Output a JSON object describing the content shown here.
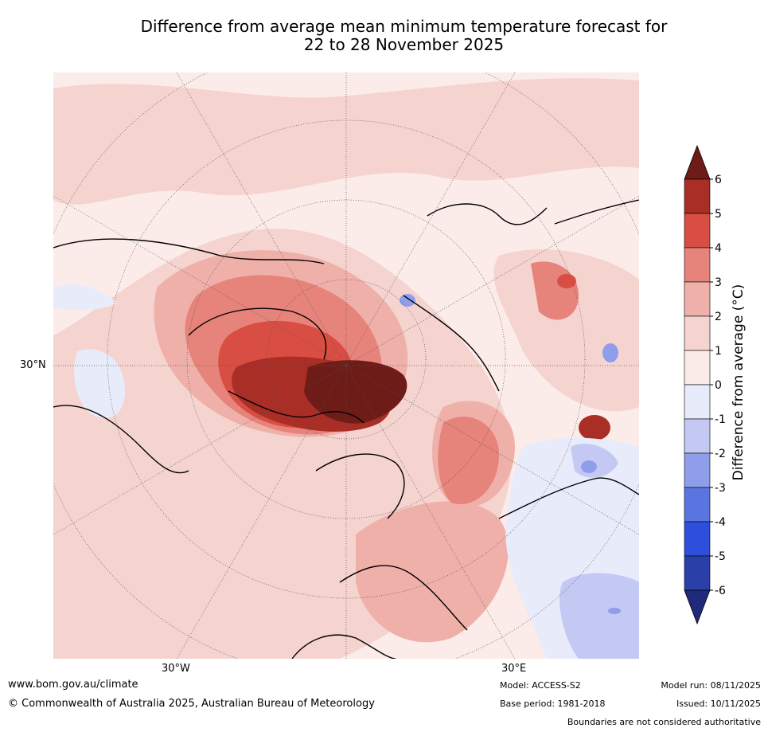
{
  "title": {
    "line1": "Difference from average mean minimum temperature forecast for",
    "line2": "22 to 28 November 2025"
  },
  "map": {
    "projection": "north-polar-stereographic",
    "lat_label": "30°N",
    "lon_labels": [
      "30°W",
      "30°E"
    ]
  },
  "colorbar": {
    "label": "Difference from average (°C)",
    "ticks": [
      "6",
      "5",
      "4",
      "3",
      "2",
      "1",
      "0",
      "-1",
      "-2",
      "-3",
      "-4",
      "-5",
      "-6"
    ],
    "colors": [
      "#6e1c17",
      "#a82e26",
      "#d94e42",
      "#e6837a",
      "#efb0a9",
      "#f5d3cf",
      "#fbebe9",
      "#e8ebfa",
      "#c3c9f2",
      "#8f9eea",
      "#5a74e0",
      "#2e4fdb",
      "#2a3fa8",
      "#1f2a7a"
    ]
  },
  "footer": {
    "website": "www.bom.gov.au/climate",
    "copyright": "© Commonwealth of Australia 2025, Australian Bureau of Meteorology",
    "model": "Model: ACCESS-S2",
    "base_period": "Base period: 1981-2018",
    "model_run": "Model run: 08/11/2025",
    "issued": "Issued: 10/11/2025",
    "disclaimer": "Boundaries are not considered authoritative"
  }
}
